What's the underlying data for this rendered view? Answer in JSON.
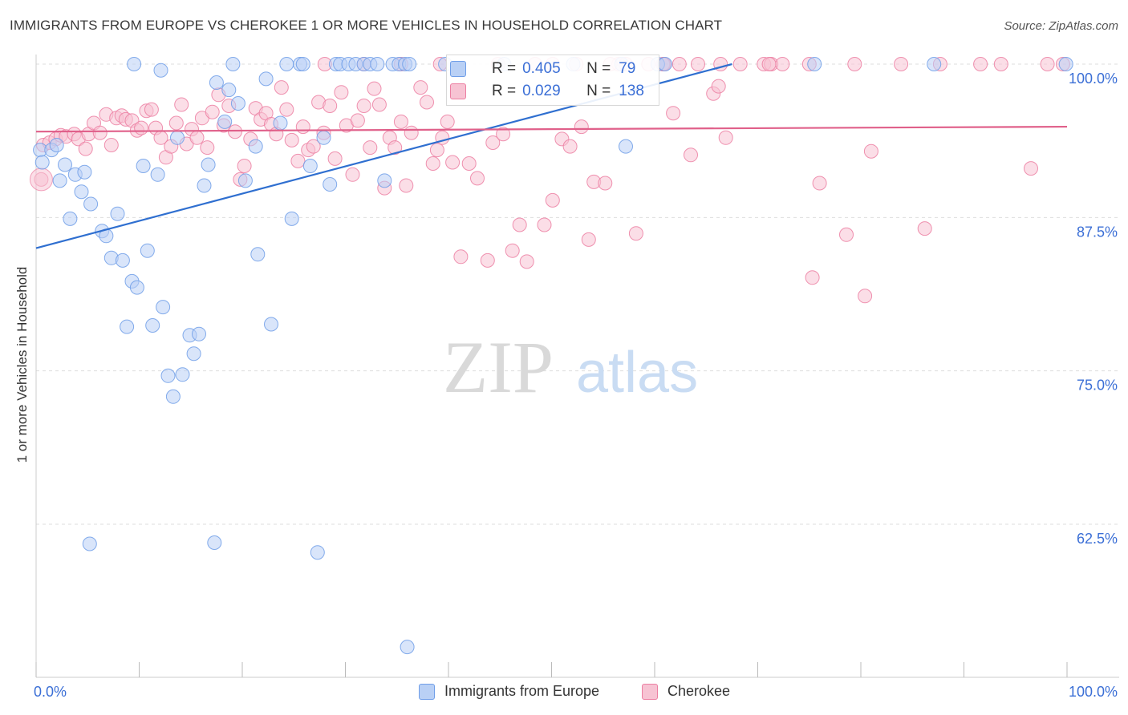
{
  "title": "IMMIGRANTS FROM EUROPE VS CHEROKEE 1 OR MORE VEHICLES IN HOUSEHOLD CORRELATION CHART",
  "source": "Source: ZipAtlas.com",
  "watermark": {
    "zip": "ZIP",
    "atlas": "atlas"
  },
  "legend": {
    "stats": [
      {
        "r_label": "R =",
        "r": "0.405",
        "n_label": "N =",
        "n": "79"
      },
      {
        "r_label": "R =",
        "r": "0.029",
        "n_label": "N =",
        "n": "138"
      }
    ]
  },
  "chart_data": {
    "type": "scatter",
    "title": "IMMIGRANTS FROM EUROPE VS CHEROKEE 1 OR MORE VEHICLES IN HOUSEHOLD CORRELATION CHART",
    "xlabel": "",
    "ylabel": "1 or more Vehicles in Household",
    "xlim": [
      0,
      100
    ],
    "ylim": [
      52,
      101.5
    ],
    "x_tick_labels": [
      "0.0%",
      "100.0%"
    ],
    "y_ticks": [
      62.5,
      75.0,
      87.5,
      100.0
    ],
    "y_tick_labels": [
      "62.5%",
      "75.0%",
      "87.5%",
      "100.0%"
    ],
    "grid": true,
    "legend_position": "bottom",
    "colors": {
      "europe": "#6f9ee8",
      "europe_fill": "#b9d0f5",
      "cherokee": "#ec7fa2",
      "cherokee_fill": "#f7c3d3",
      "europe_line": "#2f6fd0",
      "cherokee_line": "#e0608a"
    },
    "series": [
      {
        "name": "Immigrants from Europe",
        "r": 0.405,
        "n": 79,
        "trend": {
          "x": [
            0,
            67.5
          ],
          "y": [
            85.0,
            100.0
          ]
        },
        "points": [
          [
            0.4,
            93.0
          ],
          [
            0.6,
            92.0
          ],
          [
            1.5,
            93.0
          ],
          [
            2.0,
            93.4
          ],
          [
            2.3,
            90.5
          ],
          [
            2.8,
            91.8
          ],
          [
            3.3,
            87.4
          ],
          [
            3.8,
            91.0
          ],
          [
            4.4,
            89.6
          ],
          [
            4.7,
            91.2
          ],
          [
            5.3,
            88.6
          ],
          [
            6.4,
            86.4
          ],
          [
            6.8,
            86.0
          ],
          [
            7.3,
            84.2
          ],
          [
            7.9,
            87.8
          ],
          [
            8.4,
            84.0
          ],
          [
            8.8,
            78.6
          ],
          [
            9.3,
            82.3
          ],
          [
            9.8,
            81.8
          ],
          [
            10.4,
            91.7
          ],
          [
            10.8,
            84.8
          ],
          [
            11.3,
            78.7
          ],
          [
            11.8,
            91.0
          ],
          [
            12.3,
            80.2
          ],
          [
            12.8,
            74.6
          ],
          [
            13.3,
            72.9
          ],
          [
            13.7,
            94.0
          ],
          [
            14.2,
            74.7
          ],
          [
            14.9,
            77.9
          ],
          [
            15.3,
            76.4
          ],
          [
            15.8,
            78.0
          ],
          [
            16.3,
            90.1
          ],
          [
            16.7,
            91.8
          ],
          [
            17.5,
            98.5
          ],
          [
            18.3,
            95.3
          ],
          [
            18.7,
            97.9
          ],
          [
            19.1,
            100.0
          ],
          [
            19.6,
            96.8
          ],
          [
            20.3,
            90.5
          ],
          [
            21.3,
            93.3
          ],
          [
            21.5,
            84.5
          ],
          [
            22.3,
            98.8
          ],
          [
            22.8,
            78.8
          ],
          [
            23.7,
            95.2
          ],
          [
            24.3,
            100.0
          ],
          [
            24.8,
            87.4
          ],
          [
            25.6,
            100.0
          ],
          [
            25.9,
            100.0
          ],
          [
            26.6,
            91.7
          ],
          [
            27.3,
            60.2
          ],
          [
            27.9,
            94.0
          ],
          [
            28.5,
            90.2
          ],
          [
            29.1,
            100.0
          ],
          [
            29.5,
            100.0
          ],
          [
            30.3,
            100.0
          ],
          [
            31.0,
            100.0
          ],
          [
            31.8,
            100.0
          ],
          [
            32.4,
            100.0
          ],
          [
            33.1,
            100.0
          ],
          [
            33.8,
            90.5
          ],
          [
            34.6,
            100.0
          ],
          [
            35.2,
            100.0
          ],
          [
            35.8,
            100.0
          ],
          [
            36.2,
            100.0
          ],
          [
            36.0,
            52.5
          ],
          [
            39.7,
            100.0
          ],
          [
            45.4,
            100.0
          ],
          [
            52.1,
            100.0
          ],
          [
            56.8,
            100.0
          ],
          [
            57.2,
            93.3
          ],
          [
            60.3,
            100.0
          ],
          [
            61.0,
            100.0
          ],
          [
            75.5,
            100.0
          ],
          [
            87.1,
            100.0
          ],
          [
            99.9,
            100.0
          ],
          [
            5.2,
            60.9
          ],
          [
            17.3,
            61.0
          ],
          [
            9.5,
            100.0
          ],
          [
            12.1,
            99.5
          ]
        ]
      },
      {
        "name": "Cherokee",
        "r": 0.029,
        "n": 138,
        "trend": {
          "x": [
            0,
            100
          ],
          "y": [
            94.5,
            94.9
          ]
        },
        "points": [
          [
            0.5,
            90.6
          ],
          [
            0.7,
            93.4
          ],
          [
            1.3,
            93.6
          ],
          [
            1.9,
            93.9
          ],
          [
            2.4,
            94.2
          ],
          [
            2.9,
            94.1
          ],
          [
            3.7,
            94.3
          ],
          [
            4.1,
            93.9
          ],
          [
            4.8,
            93.1
          ],
          [
            5.1,
            94.3
          ],
          [
            5.6,
            95.2
          ],
          [
            6.2,
            94.4
          ],
          [
            6.8,
            95.9
          ],
          [
            7.3,
            93.4
          ],
          [
            7.8,
            95.6
          ],
          [
            8.3,
            95.8
          ],
          [
            8.7,
            95.5
          ],
          [
            9.3,
            95.4
          ],
          [
            9.8,
            94.6
          ],
          [
            10.2,
            94.8
          ],
          [
            10.7,
            96.2
          ],
          [
            11.2,
            96.3
          ],
          [
            11.6,
            94.8
          ],
          [
            12.1,
            94.0
          ],
          [
            12.6,
            92.4
          ],
          [
            13.1,
            93.3
          ],
          [
            13.6,
            95.2
          ],
          [
            14.1,
            96.7
          ],
          [
            14.6,
            93.5
          ],
          [
            15.1,
            94.7
          ],
          [
            15.6,
            94.0
          ],
          [
            16.1,
            95.6
          ],
          [
            16.6,
            93.2
          ],
          [
            17.1,
            96.1
          ],
          [
            17.7,
            97.5
          ],
          [
            18.2,
            95.0
          ],
          [
            18.7,
            96.6
          ],
          [
            19.3,
            94.5
          ],
          [
            19.8,
            90.6
          ],
          [
            20.2,
            91.7
          ],
          [
            20.8,
            93.9
          ],
          [
            21.3,
            96.4
          ],
          [
            21.8,
            95.5
          ],
          [
            22.3,
            96.0
          ],
          [
            22.8,
            95.1
          ],
          [
            23.3,
            94.3
          ],
          [
            23.8,
            98.1
          ],
          [
            24.3,
            96.3
          ],
          [
            24.8,
            93.8
          ],
          [
            25.4,
            92.1
          ],
          [
            25.9,
            94.9
          ],
          [
            26.4,
            93.0
          ],
          [
            26.9,
            93.3
          ],
          [
            27.4,
            96.9
          ],
          [
            27.9,
            94.4
          ],
          [
            28.5,
            96.6
          ],
          [
            29.0,
            92.3
          ],
          [
            29.6,
            97.7
          ],
          [
            30.1,
            95.0
          ],
          [
            30.7,
            91.0
          ],
          [
            31.2,
            95.4
          ],
          [
            31.8,
            96.6
          ],
          [
            32.4,
            93.2
          ],
          [
            32.8,
            98.0
          ],
          [
            33.3,
            96.7
          ],
          [
            33.8,
            89.9
          ],
          [
            34.3,
            94.0
          ],
          [
            34.8,
            93.2
          ],
          [
            35.4,
            95.3
          ],
          [
            35.9,
            90.1
          ],
          [
            36.4,
            94.4
          ],
          [
            37.3,
            98.1
          ],
          [
            37.9,
            96.9
          ],
          [
            38.5,
            91.9
          ],
          [
            38.9,
            93.0
          ],
          [
            39.4,
            94.0
          ],
          [
            39.9,
            95.3
          ],
          [
            40.4,
            92.0
          ],
          [
            41.2,
            84.3
          ],
          [
            42.0,
            91.9
          ],
          [
            42.8,
            90.7
          ],
          [
            43.8,
            84.0
          ],
          [
            44.3,
            93.6
          ],
          [
            45.3,
            94.3
          ],
          [
            46.2,
            84.8
          ],
          [
            46.9,
            86.9
          ],
          [
            47.6,
            83.9
          ],
          [
            48.4,
            100.0
          ],
          [
            49.3,
            86.9
          ],
          [
            50.1,
            88.9
          ],
          [
            51.0,
            93.9
          ],
          [
            51.8,
            93.3
          ],
          [
            52.4,
            100.0
          ],
          [
            52.9,
            94.9
          ],
          [
            53.6,
            85.7
          ],
          [
            54.1,
            90.4
          ],
          [
            55.2,
            90.3
          ],
          [
            56.5,
            100.0
          ],
          [
            57.2,
            100.0
          ],
          [
            58.2,
            86.2
          ],
          [
            59.4,
            100.0
          ],
          [
            60.8,
            100.0
          ],
          [
            61.8,
            96.0
          ],
          [
            62.4,
            100.0
          ],
          [
            63.5,
            92.6
          ],
          [
            64.2,
            100.0
          ],
          [
            65.7,
            97.6
          ],
          [
            66.2,
            98.2
          ],
          [
            66.9,
            94.0
          ],
          [
            68.3,
            100.0
          ],
          [
            70.6,
            100.0
          ],
          [
            71.3,
            100.0
          ],
          [
            72.4,
            100.0
          ],
          [
            75.0,
            100.0
          ],
          [
            75.3,
            82.6
          ],
          [
            76.0,
            90.3
          ],
          [
            78.6,
            86.1
          ],
          [
            79.4,
            100.0
          ],
          [
            80.4,
            81.1
          ],
          [
            81.0,
            92.9
          ],
          [
            83.9,
            100.0
          ],
          [
            86.2,
            86.6
          ],
          [
            87.7,
            100.0
          ],
          [
            91.6,
            100.0
          ],
          [
            93.6,
            100.0
          ],
          [
            96.5,
            91.5
          ],
          [
            98.1,
            100.0
          ],
          [
            99.6,
            100.0
          ],
          [
            39.2,
            100.0
          ],
          [
            35.4,
            100.0
          ],
          [
            31.8,
            100.0
          ],
          [
            28.0,
            100.0
          ],
          [
            44.8,
            100.0
          ],
          [
            50.1,
            100.0
          ],
          [
            55.7,
            100.0
          ],
          [
            60.9,
            100.0
          ],
          [
            66.4,
            100.0
          ],
          [
            71.1,
            100.0
          ]
        ]
      }
    ]
  }
}
